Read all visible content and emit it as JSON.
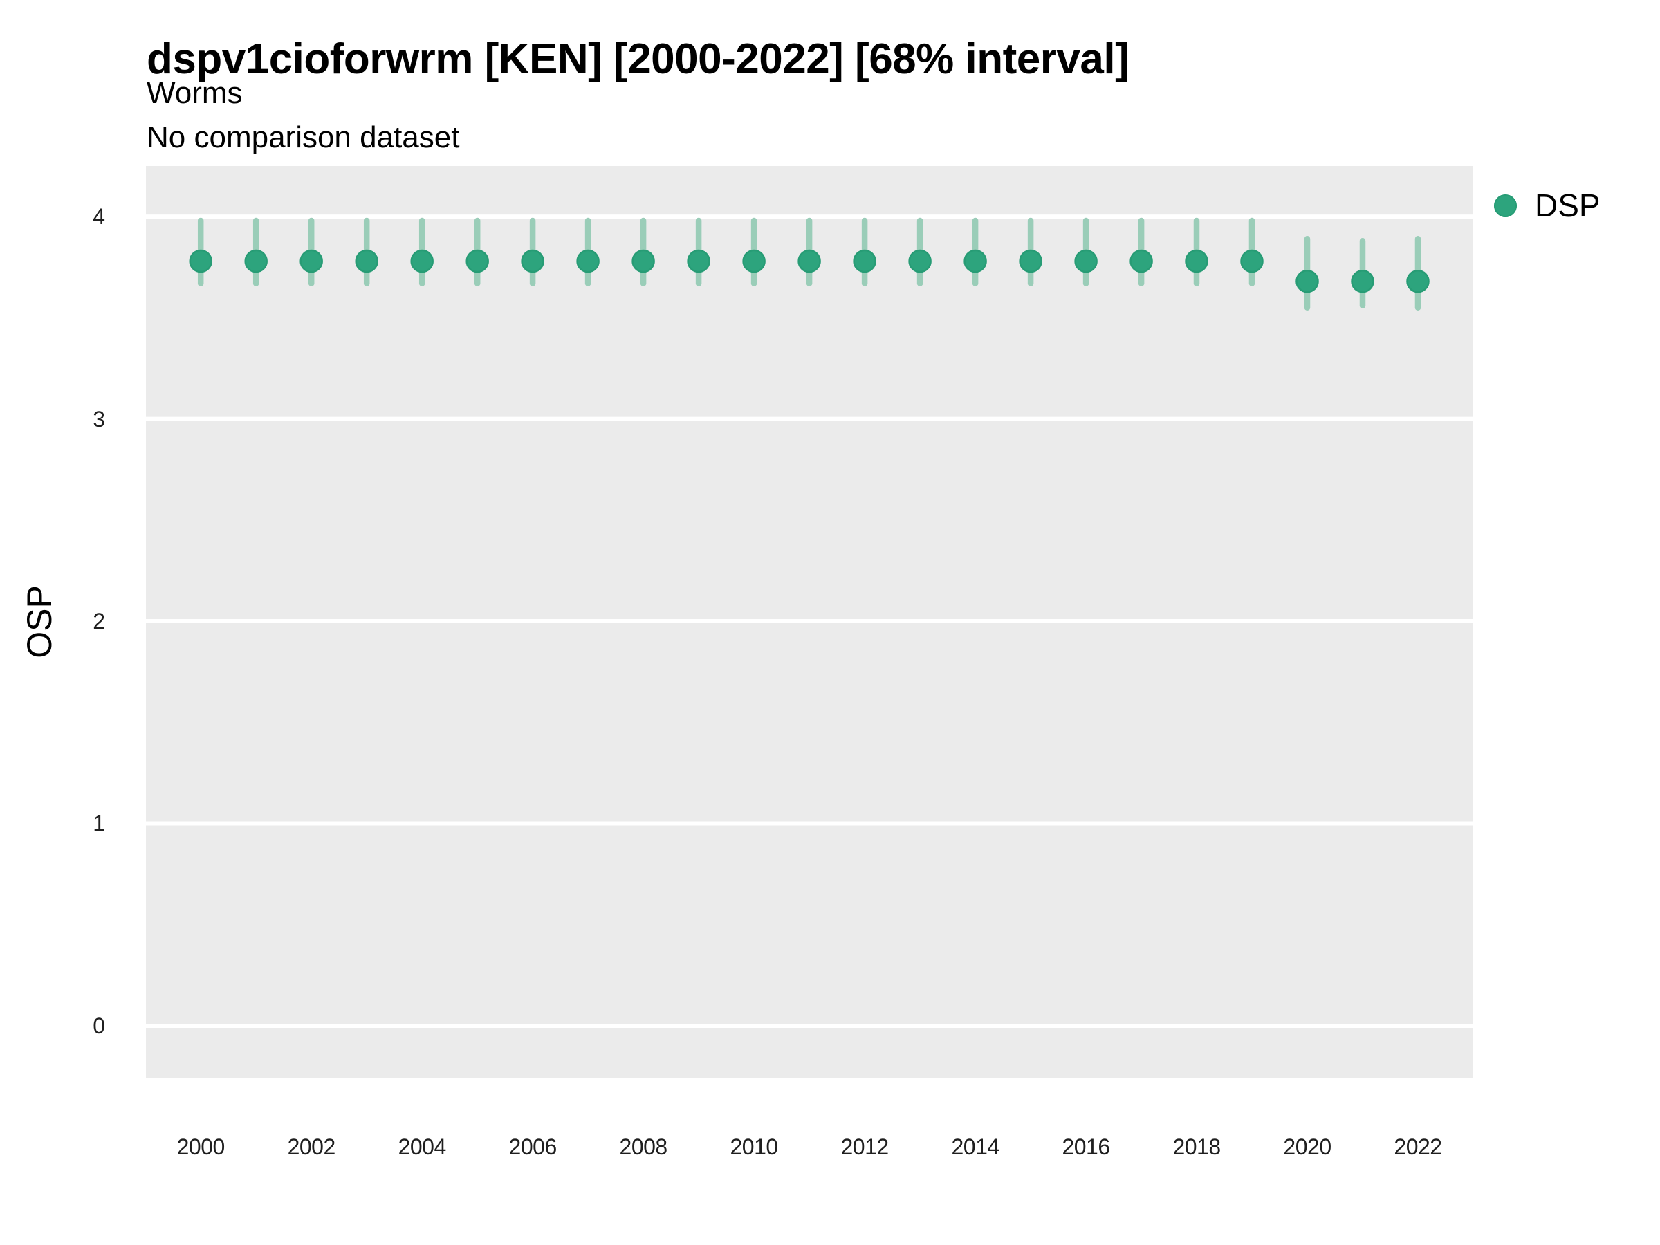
{
  "header": {
    "title": "dspv1cioforwrm [KEN] [2000-2022] [68% interval]",
    "subtitle": "Worms",
    "note": "No comparison dataset"
  },
  "legend": {
    "position": "right-top",
    "items": [
      {
        "label": "DSP",
        "marker": "circle-icon",
        "marker_color": "#2DA47D"
      }
    ]
  },
  "colors": {
    "page_bg": "#FFFFFF",
    "panel_bg": "#EBEBEB",
    "gridline": "#FFFFFF",
    "interval_bar": "#9ACDB8",
    "point_fill": "#2DA47D",
    "point_stroke": "#279C75",
    "tick_text": "#1F1F1F",
    "title_text": "#000000"
  },
  "chart_data": {
    "type": "scatter",
    "subtype": "point-interval",
    "interval_level": "68%",
    "title": "dspv1cioforwrm [KEN] [2000-2022] [68% interval]",
    "subtitle": "Worms",
    "annotation": "No comparison dataset",
    "xlabel": "",
    "ylabel": "OSP",
    "xlim": [
      1999.01,
      2023.0
    ],
    "ylim": [
      -0.26,
      4.25
    ],
    "x_ticks": [
      2000,
      2002,
      2004,
      2006,
      2008,
      2010,
      2012,
      2014,
      2016,
      2018,
      2020,
      2022
    ],
    "y_ticks": [
      0,
      1,
      2,
      3,
      4
    ],
    "grid": "major-horizontal-only",
    "legend_position": "right-top",
    "series": [
      {
        "name": "DSP",
        "x": [
          2000,
          2001,
          2002,
          2003,
          2004,
          2005,
          2006,
          2007,
          2008,
          2009,
          2010,
          2011,
          2012,
          2013,
          2014,
          2015,
          2016,
          2017,
          2018,
          2019,
          2020,
          2021,
          2022
        ],
        "y": [
          3.78,
          3.78,
          3.78,
          3.78,
          3.78,
          3.78,
          3.78,
          3.78,
          3.78,
          3.78,
          3.78,
          3.78,
          3.78,
          3.78,
          3.78,
          3.78,
          3.78,
          3.78,
          3.78,
          3.78,
          3.68,
          3.68,
          3.68
        ],
        "lo": [
          3.67,
          3.67,
          3.67,
          3.67,
          3.67,
          3.67,
          3.67,
          3.67,
          3.67,
          3.67,
          3.67,
          3.67,
          3.67,
          3.67,
          3.67,
          3.67,
          3.67,
          3.67,
          3.67,
          3.67,
          3.55,
          3.56,
          3.55
        ],
        "hi": [
          3.98,
          3.98,
          3.98,
          3.98,
          3.98,
          3.98,
          3.98,
          3.98,
          3.98,
          3.98,
          3.98,
          3.98,
          3.98,
          3.98,
          3.98,
          3.98,
          3.98,
          3.98,
          3.98,
          3.98,
          3.89,
          3.88,
          3.89
        ]
      }
    ]
  }
}
